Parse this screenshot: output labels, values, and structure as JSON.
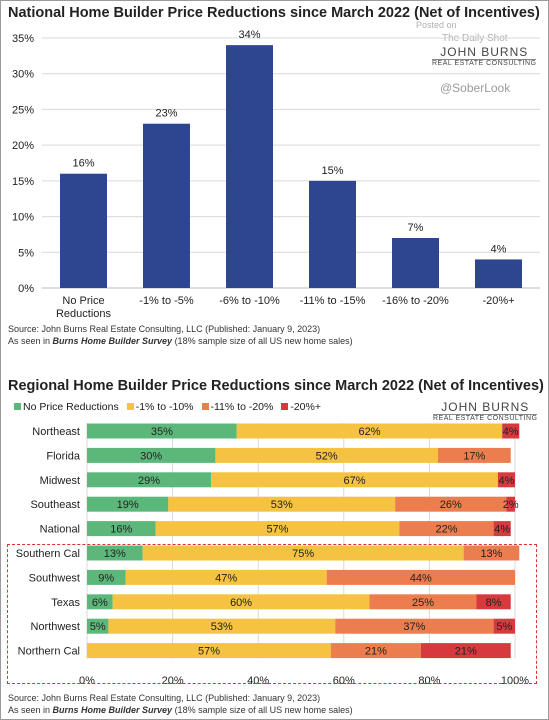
{
  "colors": {
    "bar_blue": "#2e4690",
    "green": "#5cb87a",
    "yellow": "#f5c242",
    "orange": "#ec7d4e",
    "red": "#d63a3f"
  },
  "top": {
    "title": "National Home Builder Price Reductions since March 2022 (Net of Incentives)",
    "source_line1": "Source: John Burns Real Estate Consulting, LLC (Published: January 9, 2023)",
    "source_prefix": "As seen in ",
    "source_survey": "Burns Home Builder Survey",
    "source_suffix": " (18% sample size of all US new home sales)"
  },
  "bottom": {
    "title": "Regional Home Builder Price Reductions since March 2022 (Net of Incentives)",
    "source_line1": "Source: John Burns Real Estate Consulting, LLC (Published: January 9, 2023)",
    "source_prefix": "As seen in ",
    "source_survey": "Burns Home Builder Survey",
    "source_suffix": " (18% sample size of all US new home sales)"
  },
  "logo": {
    "top_name": "JOHN BURNS",
    "top_sub": "REAL ESTATE CONSULTING",
    "bottom_name": "JOHN BURNS",
    "bottom_sub": "REAL ESTATE CONSULTING"
  },
  "watermark": {
    "posted": "Posted on",
    "shot": "The Daily Shot",
    "soberlook": "@SoberLook"
  },
  "chart_data": [
    {
      "type": "bar",
      "title": "National Home Builder Price Reductions since March 2022 (Net of Incentives)",
      "categories": [
        "No Price Reductions",
        "-1% to -5%",
        "-6% to -10%",
        "-11% to -15%",
        "-16% to -20%",
        "-20%+"
      ],
      "values": [
        16,
        23,
        34,
        15,
        7,
        4
      ],
      "data_labels": [
        "16%",
        "23%",
        "34%",
        "15%",
        "7%",
        "4%"
      ],
      "ylim": [
        0,
        35
      ],
      "yticks": [
        "0%",
        "5%",
        "10%",
        "15%",
        "20%",
        "25%",
        "30%",
        "35%"
      ],
      "grid": true,
      "color": "#2e4690"
    },
    {
      "type": "bar",
      "stacked": "horizontal-100",
      "title": "Regional Home Builder Price Reductions since March 2022 (Net of Incentives)",
      "categories": [
        "Northeast",
        "Florida",
        "Midwest",
        "Southeast",
        "National",
        "Southern Cal",
        "Southwest",
        "Texas",
        "Northwest",
        "Northern Cal"
      ],
      "series": [
        {
          "name": "No Price Reductions",
          "color": "#5cb87a",
          "values": [
            35,
            30,
            29,
            19,
            16,
            13,
            9,
            6,
            5,
            0
          ]
        },
        {
          "name": "-1% to -10%",
          "color": "#f5c242",
          "values": [
            62,
            52,
            67,
            53,
            57,
            75,
            47,
            60,
            53,
            57
          ]
        },
        {
          "name": "-11% to -20%",
          "color": "#ec7d4e",
          "values": [
            0,
            17,
            0,
            26,
            22,
            13,
            44,
            25,
            37,
            21
          ]
        },
        {
          "name": "-20%+",
          "color": "#d63a3f",
          "values": [
            4,
            0,
            4,
            2,
            4,
            0,
            0,
            8,
            5,
            21
          ]
        }
      ],
      "xlim": [
        0,
        100
      ],
      "xticks": [
        "0%",
        "20%",
        "40%",
        "60%",
        "80%",
        "100%"
      ],
      "legend": "top-left",
      "highlight_box": [
        "Southern Cal",
        "Southwest",
        "Texas",
        "Northwest",
        "Northern Cal"
      ]
    }
  ]
}
